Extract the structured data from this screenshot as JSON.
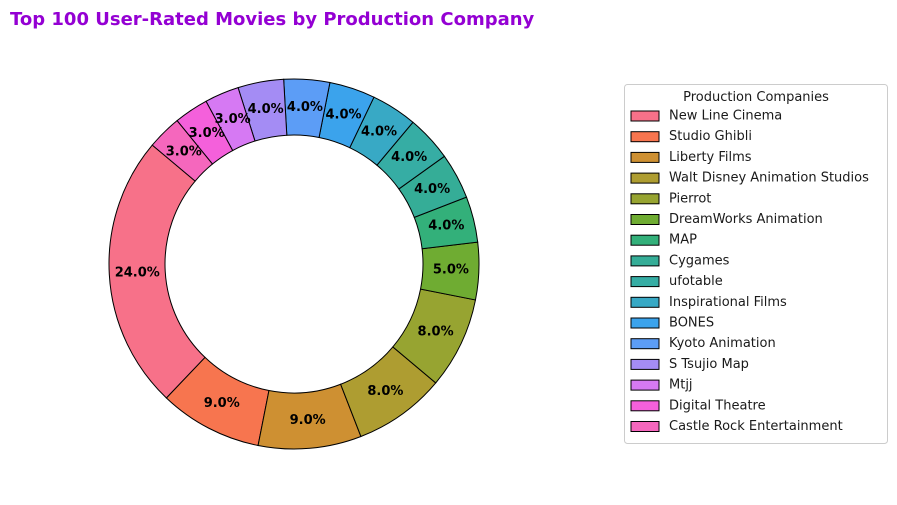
{
  "chart_data": {
    "type": "pie",
    "variant": "donut",
    "title": "Top 100 User-Rated Movies by Production Company",
    "title_color": "#9400D3",
    "legend_title": "Production Companies",
    "legend_position": "right",
    "categories": [
      "New Line Cinema",
      "Studio Ghibli",
      "Liberty Films",
      "Walt Disney Animation Studios",
      "Pierrot",
      "DreamWorks Animation",
      "MAP",
      "Cygames",
      "ufotable",
      "Inspirational Films",
      "BONES",
      "Kyoto Animation",
      "S Tsujio Map",
      "Mtjj",
      "Digital Theatre",
      "Castle Rock Entertainment"
    ],
    "values": [
      24,
      9,
      9,
      8,
      8,
      5,
      4,
      4,
      4,
      4,
      4,
      4,
      4,
      3,
      3,
      3
    ],
    "labels": [
      "24.0%",
      "9.0%",
      "9.0%",
      "8.0%",
      "8.0%",
      "5.0%",
      "4.0%",
      "4.0%",
      "4.0%",
      "4.0%",
      "4.0%",
      "4.0%",
      "4.0%",
      "3.0%",
      "3.0%",
      "3.0%"
    ],
    "colors": [
      "#F77189",
      "#F7754F",
      "#CE9032",
      "#AE9D31",
      "#97A431",
      "#6FAC32",
      "#33B07A",
      "#35AD97",
      "#36ADA4",
      "#38A9C5",
      "#3BA3EC",
      "#5C9DF6",
      "#A48CF4",
      "#D679F3",
      "#F460DB",
      "#F567BD"
    ],
    "edge_color": "#000000"
  }
}
